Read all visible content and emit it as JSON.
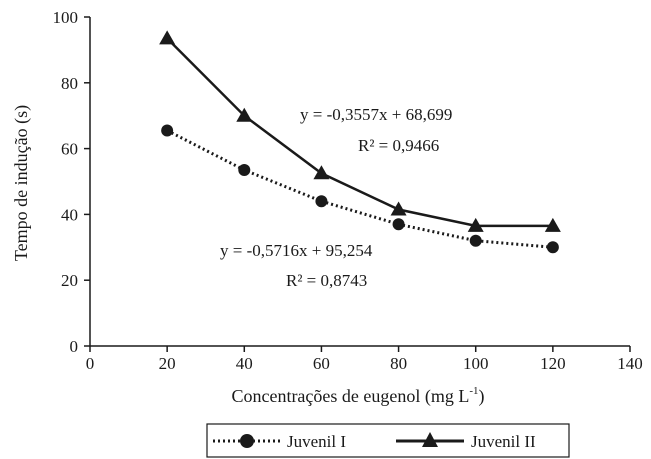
{
  "chart_data": {
    "type": "line",
    "title": "",
    "xlabel": "Concentrações de eugenol (mg L",
    "xlabel_superscript": "-1",
    "xlabel_suffix": ")",
    "ylabel": "Tempo de indução (s)",
    "xlim": [
      0,
      140
    ],
    "ylim": [
      0,
      100
    ],
    "xticks": [
      0,
      20,
      40,
      60,
      80,
      100,
      120,
      140
    ],
    "yticks": [
      0,
      20,
      40,
      60,
      80,
      100
    ],
    "x": [
      20,
      40,
      60,
      80,
      100,
      120
    ],
    "grid": false,
    "legend_position": "bottom-center",
    "series": [
      {
        "name": "Juvenil I",
        "values": [
          65.5,
          53.5,
          44,
          37,
          32,
          30
        ],
        "line_style": "dotted",
        "marker": "circle",
        "color": "#1a1a1a"
      },
      {
        "name": "Juvenil II",
        "values": [
          93.5,
          70,
          52.5,
          41.5,
          36.5,
          36.5
        ],
        "line_style": "solid",
        "marker": "triangle",
        "color": "#1a1a1a"
      }
    ],
    "annotations": [
      {
        "equation": "y =  -0,3557x + 68,699",
        "r2": "R² = 0,9466"
      },
      {
        "equation": "y = -0,5716x + 95,254",
        "r2": "R² = 0,8743"
      }
    ]
  }
}
